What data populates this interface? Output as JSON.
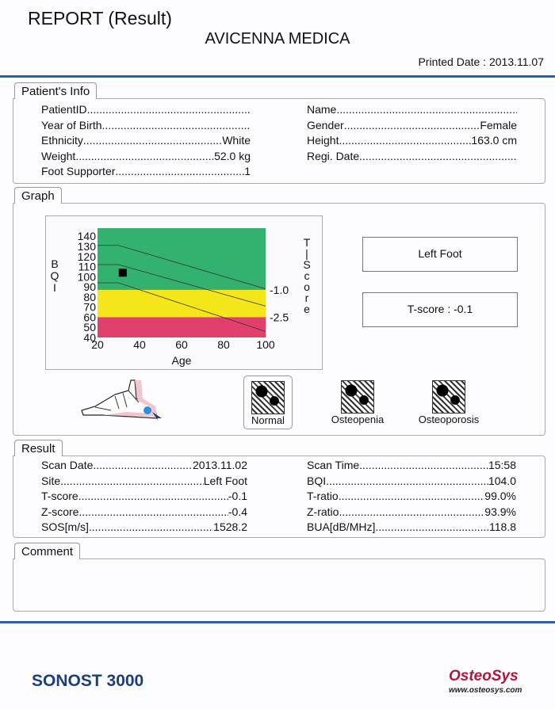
{
  "header": {
    "title": "REPORT (Result)",
    "organization": "AVICENNA MEDICA",
    "printed_date": "Printed Date : 2013.11.07"
  },
  "patient_info": {
    "tab": "Patient's Info",
    "left": [
      {
        "label": "PatientID",
        "value": ""
      },
      {
        "label": "Year of Birth",
        "value": ""
      },
      {
        "label": "Ethnicity",
        "value": "White"
      },
      {
        "label": "Weight",
        "value": "52.0 kg"
      },
      {
        "label": "Foot Supporter",
        "value": "1"
      }
    ],
    "right": [
      {
        "label": "Name",
        "value": ""
      },
      {
        "label": "Gender",
        "value": "Female"
      },
      {
        "label": "Height",
        "value": "163.0 cm"
      },
      {
        "label": "Regi. Date",
        "value": ""
      }
    ]
  },
  "graph": {
    "tab": "Graph",
    "site_box": "Left Foot",
    "tscore_box": "T-score : -0.1",
    "bone_images": [
      {
        "label": "Normal",
        "selected": true
      },
      {
        "label": "Osteopenia",
        "selected": false
      },
      {
        "label": "Osteoporosis",
        "selected": false
      }
    ],
    "foot_marker_color": "#2d8fd6"
  },
  "chart_data": {
    "type": "line",
    "xlabel": "Age",
    "ylabel": "BQI",
    "y2label": "T-Score",
    "xlim": [
      20,
      100
    ],
    "ylim": [
      40,
      148
    ],
    "x_ticks": [
      20,
      40,
      60,
      80,
      100
    ],
    "y_ticks": [
      40,
      50,
      60,
      70,
      80,
      90,
      100,
      110,
      120,
      130,
      140
    ],
    "bands": [
      {
        "from": 87,
        "to": 148,
        "color": "#33b26f"
      },
      {
        "from": 60,
        "to": 87,
        "color": "#f5e61a"
      },
      {
        "from": 40,
        "to": 60,
        "color": "#e0406b"
      }
    ],
    "tscore_labels": [
      {
        "label": "-1.0",
        "y": 87
      },
      {
        "label": "-2.5",
        "y": 60
      }
    ],
    "reference_lines": [
      {
        "x": [
          20,
          30,
          100
        ],
        "y": [
          131,
          131,
          88
        ]
      },
      {
        "x": [
          20,
          30,
          100
        ],
        "y": [
          112,
          112,
          71
        ]
      },
      {
        "x": [
          20,
          30,
          100
        ],
        "y": [
          94,
          94,
          46
        ]
      }
    ],
    "patient_point": {
      "x": 32,
      "y": 104
    }
  },
  "result": {
    "tab": "Result",
    "left": [
      {
        "label": "Scan Date",
        "value": "2013.11.02"
      },
      {
        "label": "Site",
        "value": "Left Foot"
      },
      {
        "label": "T-score",
        "value": "-0.1"
      },
      {
        "label": "Z-score",
        "value": "-0.4"
      },
      {
        "label": "SOS[m/s]",
        "value": "1528.2"
      }
    ],
    "right": [
      {
        "label": "Scan Time",
        "value": "15:58"
      },
      {
        "label": "BQI",
        "value": "104.0"
      },
      {
        "label": "T-ratio",
        "value": "99.0%"
      },
      {
        "label": "Z-ratio",
        "value": "93.9%"
      },
      {
        "label": "BUA[dB/MHz]",
        "value": "118.8"
      }
    ]
  },
  "comment": {
    "tab": "Comment",
    "text": ""
  },
  "footer": {
    "product": "SONOST 3000",
    "brand": "OsteoSys",
    "url": "www.osteosys.com"
  }
}
